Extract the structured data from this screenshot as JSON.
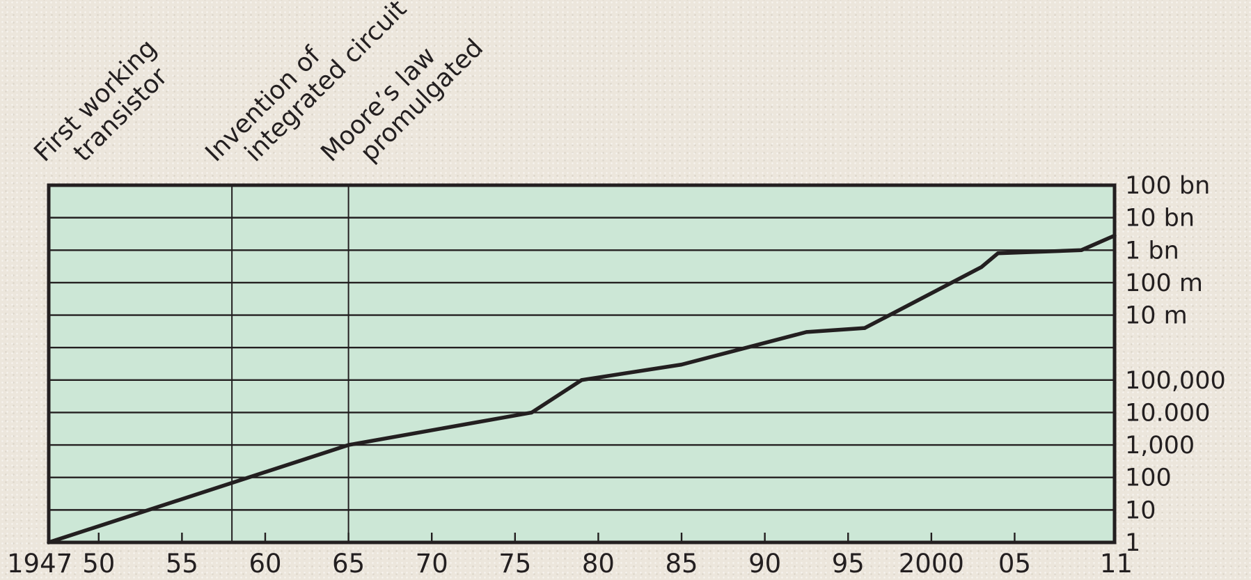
{
  "chart_data": {
    "type": "line",
    "title": "",
    "xlabel": "",
    "ylabel": "",
    "y_scale": "log",
    "xlim": [
      1947,
      2011
    ],
    "ylim": [
      1,
      100000000000
    ],
    "x_ticks": [
      {
        "value": 1947,
        "label": "1947"
      },
      {
        "value": 1950,
        "label": "50"
      },
      {
        "value": 1955,
        "label": "55"
      },
      {
        "value": 1960,
        "label": "60"
      },
      {
        "value": 1965,
        "label": "65"
      },
      {
        "value": 1970,
        "label": "70"
      },
      {
        "value": 1975,
        "label": "75"
      },
      {
        "value": 1980,
        "label": "80"
      },
      {
        "value": 1985,
        "label": "85"
      },
      {
        "value": 1990,
        "label": "90"
      },
      {
        "value": 1995,
        "label": "95"
      },
      {
        "value": 2000,
        "label": "2000"
      },
      {
        "value": 2005,
        "label": "05"
      },
      {
        "value": 2011,
        "label": "11"
      }
    ],
    "y_ticks": [
      {
        "value": 1,
        "label": "1"
      },
      {
        "value": 10,
        "label": "10"
      },
      {
        "value": 100,
        "label": "100"
      },
      {
        "value": 1000,
        "label": "1,000"
      },
      {
        "value": 10000,
        "label": "10.000"
      },
      {
        "value": 100000,
        "label": "100,000"
      },
      {
        "value": 10000000,
        "label": "10 m"
      },
      {
        "value": 100000000,
        "label": "100 m"
      },
      {
        "value": 1000000000,
        "label": "1 bn"
      },
      {
        "value": 10000000000,
        "label": "10 bn"
      },
      {
        "value": 100000000000,
        "label": "100 bn"
      }
    ],
    "grid": true,
    "series": [
      {
        "x": [
          1947,
          1965,
          1976,
          1979,
          1985,
          1992.5,
          1996,
          2003,
          2004,
          2009,
          2011
        ],
        "y": [
          1,
          1000,
          10000,
          100000,
          300000,
          3000000,
          4000000,
          300000000,
          800000000,
          1000000000,
          2800000000
        ]
      }
    ],
    "annotations": [
      {
        "x": 1947,
        "line": false,
        "lines": [
          "First working",
          "transistor"
        ]
      },
      {
        "x": 1958,
        "line": true,
        "lines": [
          "Invention of",
          "integrated circuit"
        ]
      },
      {
        "x": 1965,
        "line": true,
        "lines": [
          "Moore’s law",
          "promulgated"
        ]
      }
    ]
  },
  "colors": {
    "plot_background": "#cce7d6",
    "line": "#231f20",
    "text": "#231f20"
  }
}
